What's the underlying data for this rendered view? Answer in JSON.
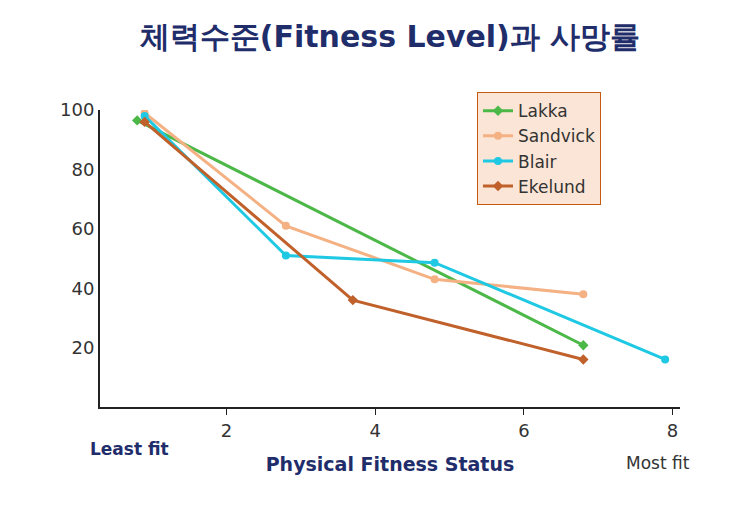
{
  "chart_data": {
    "type": "line",
    "title": "체력수준(Fitness Level)과 사망률",
    "x_label": "Physical Fitness Status",
    "annotations": [
      "Least fit",
      "Most fit"
    ],
    "xlim": [
      0.3,
      8.1
    ],
    "xticks": [
      2,
      4,
      6,
      8
    ],
    "ylim": [
      0,
      100
    ],
    "yticks": [
      20,
      40,
      60,
      80,
      100
    ],
    "grid": false,
    "legend": "top right",
    "series": [
      {
        "name": "Lakka",
        "color": "#4cb848",
        "marker": "diamond",
        "x": [
          0.8,
          6.8
        ],
        "values": [
          96.5,
          20.8
        ]
      },
      {
        "name": "Sandvick",
        "color": "#f4b183",
        "marker": "circle",
        "x": [
          0.9,
          2.8,
          4.8,
          6.8
        ],
        "values": [
          99,
          61,
          43,
          38
        ]
      },
      {
        "name": "Blair",
        "color": "#1fc8e3",
        "marker": "circle",
        "x": [
          0.9,
          2.8,
          4.8,
          7.9
        ],
        "values": [
          98,
          51,
          48.6,
          16
        ]
      },
      {
        "name": "Ekelund",
        "color": "#c0612b",
        "marker": "diamond",
        "x": [
          0.9,
          3.7,
          6.8
        ],
        "values": [
          96,
          36,
          16
        ]
      }
    ]
  }
}
